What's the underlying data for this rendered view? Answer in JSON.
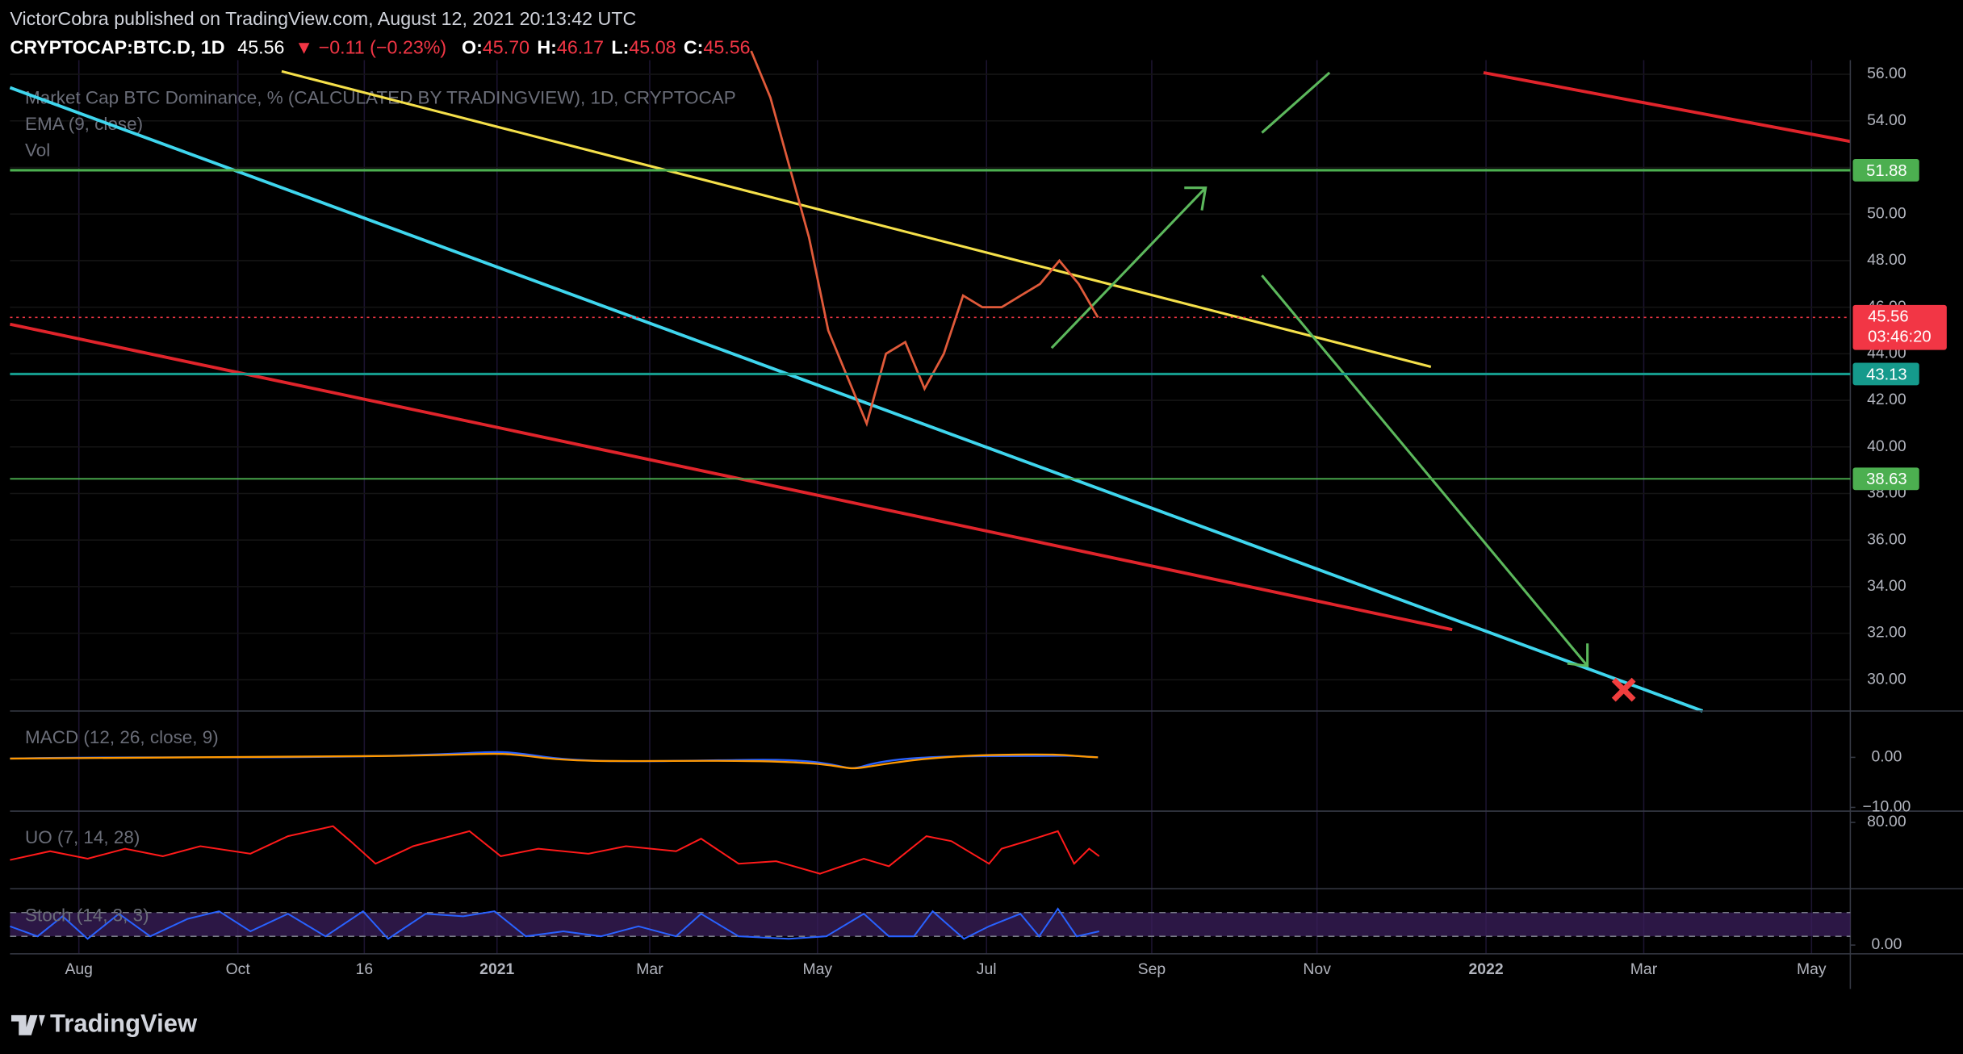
{
  "header": {
    "publisher": "VictorCobra published on TradingView.com, August 12, 2021 20:13:42 UTC",
    "symbol": "CRYPTOCAP:BTC.D, 1D",
    "last": "45.56",
    "change": "▼ −0.11 (−0.23%)",
    "ohlc": [
      {
        "label": "O:",
        "value": "45.70"
      },
      {
        "label": "H:",
        "value": "46.17"
      },
      {
        "label": "L:",
        "value": "45.08"
      },
      {
        "label": "C:",
        "value": "45.56"
      }
    ]
  },
  "legend": [
    "Market Cap BTC Dominance, % (CALCULATED BY TRADINGVIEW), 1D, CRYPTOCAP",
    "EMA (9, close)",
    "Vol"
  ],
  "price_axis": {
    "ylim": [
      28.66,
      56.61
    ],
    "yticks": [
      {
        "value": 56,
        "label": "56.00"
      },
      {
        "value": 54,
        "label": "54.00"
      },
      {
        "value": 52,
        "label": "52.00"
      },
      {
        "value": 50,
        "label": "50.00"
      },
      {
        "value": 48,
        "label": "48.00"
      },
      {
        "value": 46,
        "label": "46.00"
      },
      {
        "value": 44,
        "label": "44.00"
      },
      {
        "value": 42,
        "label": "42.00"
      },
      {
        "value": 40,
        "label": "40.00"
      },
      {
        "value": 38,
        "label": "38.00"
      },
      {
        "value": 36,
        "label": "36.00"
      },
      {
        "value": 34,
        "label": "34.00"
      },
      {
        "value": 32,
        "label": "32.00"
      },
      {
        "value": 30,
        "label": "30.00"
      }
    ]
  },
  "price_levels": [
    {
      "value": 51.88,
      "label": "51.88",
      "color": "#4caf50"
    },
    {
      "value": 43.13,
      "label": "43.13",
      "color": "#159a8c"
    },
    {
      "value": 38.63,
      "label": "38.63",
      "color": "#4caf50"
    }
  ],
  "last_price": {
    "value": 45.56,
    "label": "45.56",
    "countdown": "03:46:20",
    "color": "#f23645"
  },
  "closes": [
    57,
    55,
    52,
    49,
    45,
    43,
    41,
    44,
    44.5,
    42.5,
    44,
    46.5,
    46,
    46,
    46.5,
    47,
    48,
    47,
    45.56
  ],
  "time_axis": [
    "Aug",
    "Oct",
    "16",
    "2021",
    "Mar",
    "May",
    "Jul",
    "Sep",
    "Nov",
    "2022",
    "Mar",
    "May"
  ],
  "panes": [
    {
      "title": "MACD (12, 26, close, 9)",
      "ylim": [
        -10.75,
        9.25
      ],
      "ticks": [
        {
          "value": 0,
          "label": "0.00"
        },
        {
          "value": -10,
          "label": "−10.00"
        }
      ]
    },
    {
      "title": "UO (7, 14, 28)",
      "ylim": [
        30,
        88.5
      ],
      "ticks": [
        {
          "value": 80,
          "label": "80.00"
        }
      ]
    },
    {
      "title": "Stoch (14, 3, 3)",
      "ylim": [
        -20,
        128.6
      ],
      "ticks": [
        {
          "value": 0,
          "label": "0.00"
        }
      ]
    }
  ],
  "footer": "TradingView"
}
